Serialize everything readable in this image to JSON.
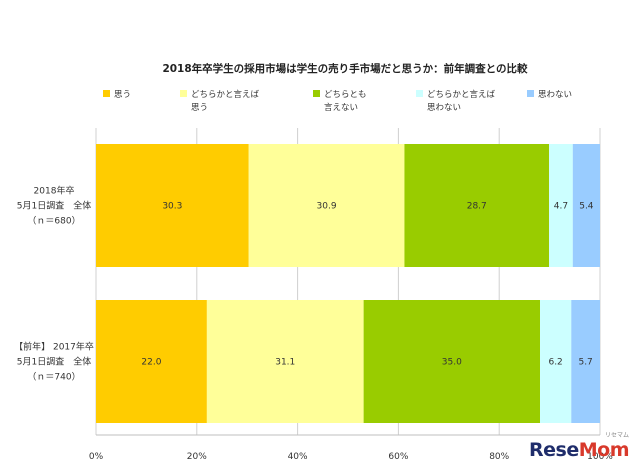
{
  "chart_data": {
    "type": "bar",
    "orientation": "horizontal-stacked",
    "title": "2018年卒学生の採用市場は学生の売り手市場だと思うか：前年調査との比較",
    "categories": [
      [
        "2018年卒",
        "5月1日調査　全体",
        "（ｎ＝680）"
      ],
      [
        "【前年】 2017年卒",
        "5月1日調査　全体",
        "（ｎ＝740）"
      ]
    ],
    "series": [
      {
        "name": [
          "思う"
        ],
        "color": "#ffcc00",
        "values": [
          30.3,
          22.0
        ]
      },
      {
        "name": [
          "どちらかと言えば",
          "思う"
        ],
        "color": "#ffff99",
        "values": [
          30.9,
          31.1
        ]
      },
      {
        "name": [
          "どちらとも",
          "言えない"
        ],
        "color": "#99cc00",
        "values": [
          28.7,
          35.0
        ]
      },
      {
        "name": [
          "どちらかと言えば",
          "思わない"
        ],
        "color": "#ccffff",
        "values": [
          4.7,
          6.2
        ]
      },
      {
        "name": [
          "思わない"
        ],
        "color": "#99ccff",
        "values": [
          5.4,
          5.7
        ]
      }
    ],
    "xlim": [
      0,
      100
    ],
    "xticks": [
      "0%",
      "20%",
      "40%",
      "60%",
      "80%",
      "100%"
    ],
    "legend": "top",
    "grid": true
  },
  "watermark": {
    "part1": "Rese",
    "part2": "Mom",
    "small": "リセマム"
  }
}
